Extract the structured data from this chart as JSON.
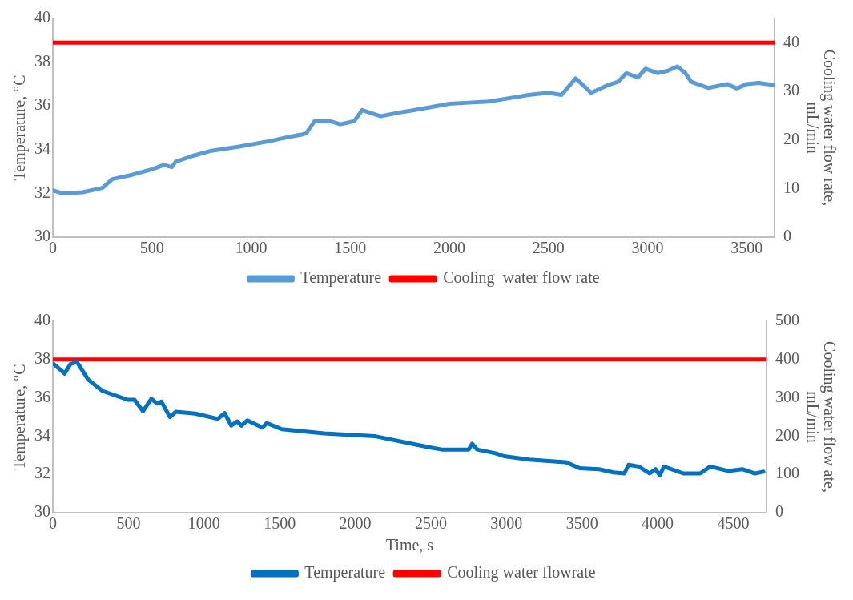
{
  "chart_data": [
    {
      "type": "line",
      "ylabel": "Temperature, °C",
      "y2label": "Cooling water flow rate, mL/min",
      "xlim": [
        0,
        3640
      ],
      "xticks": [
        0,
        500,
        1000,
        1500,
        2000,
        2500,
        3000,
        3500
      ],
      "ylim": [
        30,
        40
      ],
      "yticks": [
        30,
        32,
        34,
        36,
        38,
        40
      ],
      "y2lim": [
        0,
        45
      ],
      "y2ticks": [
        0,
        10,
        20,
        30,
        40
      ],
      "grid": false,
      "legend": "bottom",
      "marker": "none",
      "line_style": "solid",
      "series": [
        {
          "name": "Temperature",
          "color": "#5b9bd5",
          "x": [
            0,
            50,
            150,
            250,
            300,
            400,
            500,
            560,
            600,
            620,
            700,
            800,
            940,
            1100,
            1200,
            1260,
            1277,
            1320,
            1400,
            1450,
            1520,
            1560,
            1654,
            1750,
            1850,
            2000,
            2080,
            2200,
            2300,
            2400,
            2500,
            2565,
            2637,
            2680,
            2715,
            2800,
            2850,
            2893,
            2950,
            2990,
            3050,
            3100,
            3150,
            3190,
            3220,
            3307,
            3400,
            3450,
            3500,
            3560,
            3640
          ],
          "values": [
            32.14,
            32.0,
            32.05,
            32.25,
            32.65,
            32.85,
            33.1,
            33.3,
            33.2,
            33.45,
            33.7,
            33.95,
            34.14,
            34.4,
            34.6,
            34.7,
            34.74,
            35.3,
            35.3,
            35.16,
            35.3,
            35.81,
            35.53,
            35.7,
            35.85,
            36.1,
            36.14,
            36.2,
            36.35,
            36.5,
            36.6,
            36.5,
            37.26,
            36.9,
            36.6,
            36.95,
            37.1,
            37.5,
            37.3,
            37.7,
            37.5,
            37.6,
            37.8,
            37.5,
            37.1,
            36.82,
            37.0,
            36.8,
            37.0,
            37.05,
            36.95
          ]
        },
        {
          "name": "Cooling  water flow rate",
          "color": "#ff0000",
          "axis": "y2",
          "x": [
            0,
            3640
          ],
          "values": [
            40,
            40
          ]
        }
      ]
    },
    {
      "type": "line",
      "xlabel": "Time, s",
      "ylabel": "Temperature, °C",
      "y2label": "Cooling water flow ate, mL/min",
      "xlim": [
        0,
        4720
      ],
      "xticks": [
        0,
        500,
        1000,
        1500,
        2000,
        2500,
        3000,
        3500,
        4000,
        4500
      ],
      "ylim": [
        30,
        40
      ],
      "yticks": [
        30,
        32,
        34,
        36,
        38,
        40
      ],
      "y2lim": [
        0,
        500
      ],
      "y2ticks": [
        0,
        100,
        200,
        300,
        400,
        500
      ],
      "grid": false,
      "legend": "bottom",
      "marker": "none",
      "line_style": "solid",
      "series": [
        {
          "name": "Temperature",
          "color": "#0070c0",
          "x": [
            5,
            78,
            117,
            160,
            234,
            328,
            495,
            540,
            596,
            651,
            690,
            718,
            774,
            813,
            941,
            1091,
            1136,
            1180,
            1219,
            1247,
            1286,
            1386,
            1414,
            1514,
            1793,
            2127,
            2350,
            2500,
            2572,
            2750,
            2773,
            2806,
            2928,
            2984,
            3151,
            3391,
            3485,
            3613,
            3708,
            3780,
            3808,
            3875,
            3947,
            3986,
            4014,
            4042,
            4170,
            4282,
            4348,
            4465,
            4560,
            4644,
            4699
          ],
          "values": [
            37.77,
            37.27,
            37.77,
            37.86,
            36.95,
            36.36,
            35.9,
            35.9,
            35.3,
            35.95,
            35.7,
            35.8,
            35.0,
            35.27,
            35.18,
            34.9,
            35.2,
            34.55,
            34.77,
            34.55,
            34.82,
            34.45,
            34.68,
            34.36,
            34.14,
            34.0,
            33.64,
            33.4,
            33.3,
            33.3,
            33.6,
            33.3,
            33.1,
            32.95,
            32.77,
            32.64,
            32.32,
            32.27,
            32.1,
            32.05,
            32.5,
            32.41,
            32.05,
            32.27,
            31.95,
            32.41,
            32.05,
            32.05,
            32.41,
            32.18,
            32.27,
            32.05,
            32.14
          ]
        },
        {
          "name": "Cooling water flowrate",
          "color": "#ff0000",
          "axis": "y2",
          "x": [
            0,
            4720
          ],
          "values": [
            400,
            400
          ]
        }
      ]
    }
  ]
}
